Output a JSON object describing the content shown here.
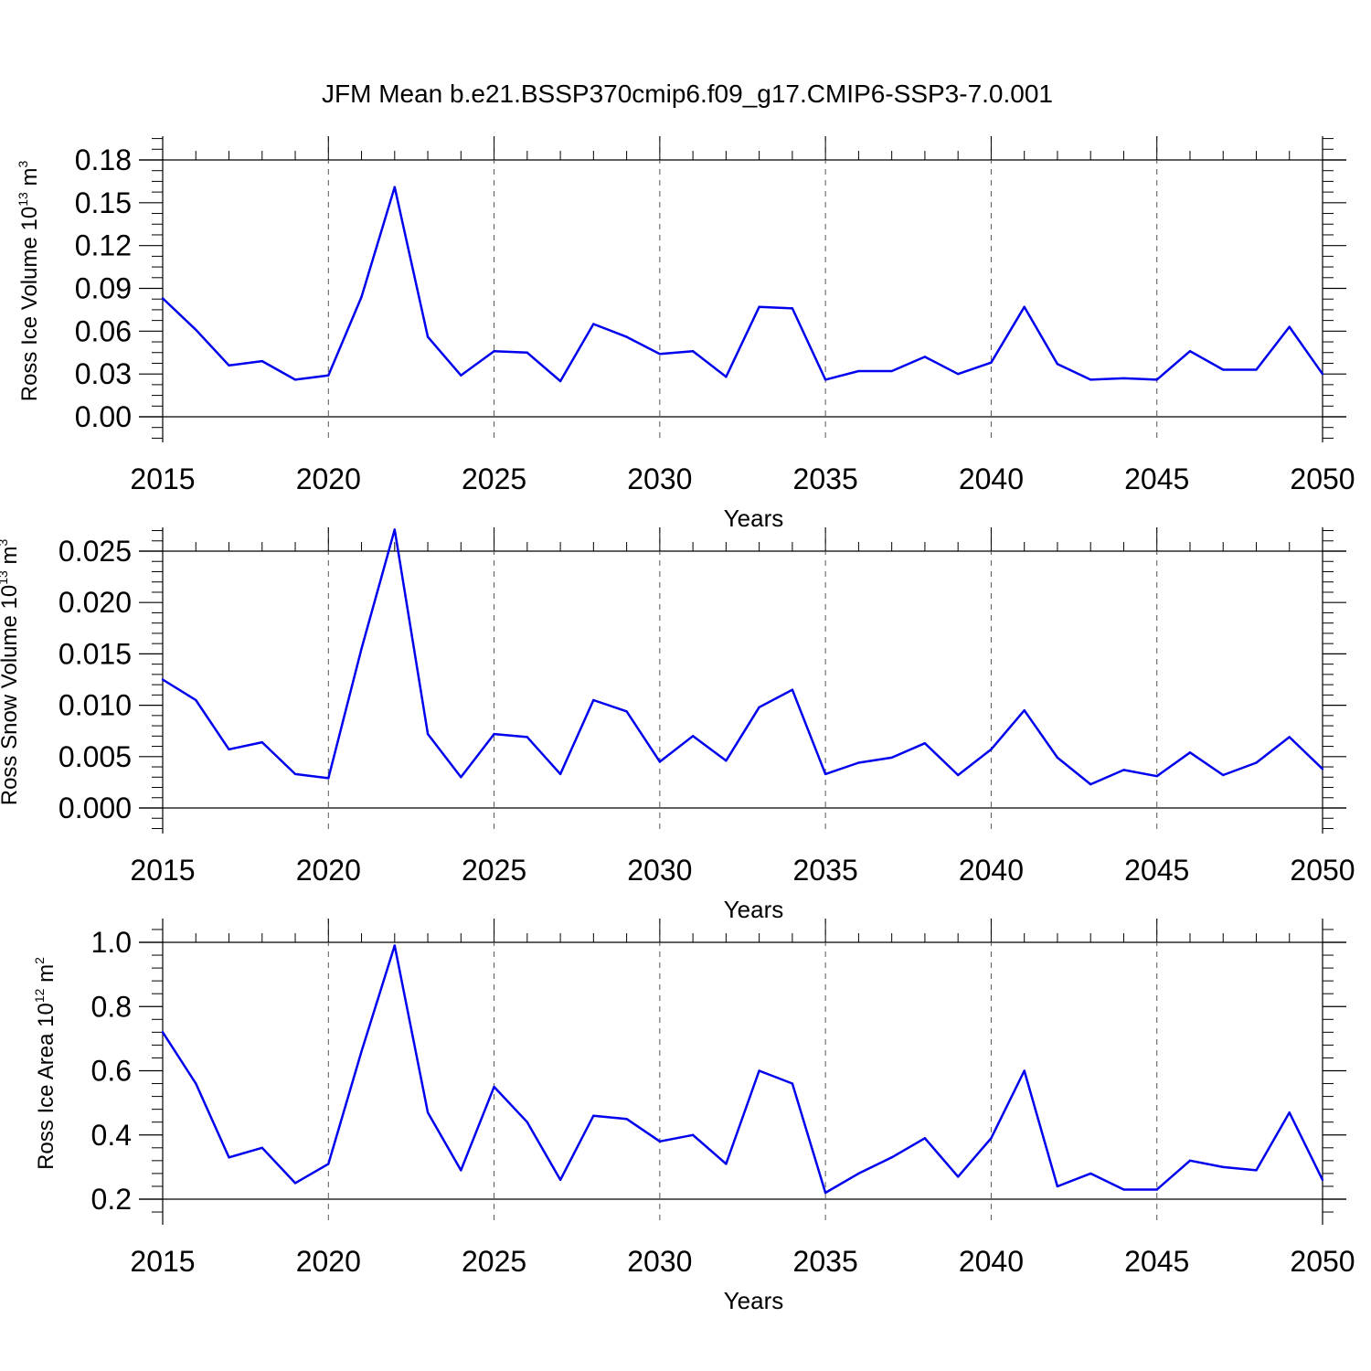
{
  "figure": {
    "title": "JFM Mean b.e21.BSSP370cmip6.f09_g17.CMIP6-SSP3-7.0.001"
  },
  "chart_data": [
    {
      "type": "line",
      "title": "",
      "xlabel": "Years",
      "ylabel": {
        "base": "Ross Ice Volume 10",
        "exponent": "13",
        "unit": " m",
        "unit_exponent": "3"
      },
      "xlim": [
        2015,
        2050
      ],
      "ylim": [
        0.0,
        0.18
      ],
      "xticks": [
        2015,
        2020,
        2025,
        2030,
        2035,
        2040,
        2045,
        2050
      ],
      "yticks": [
        0.0,
        0.03,
        0.06,
        0.09,
        0.12,
        0.15,
        0.18
      ],
      "ytick_labels": [
        "0.00",
        "0.03",
        "0.06",
        "0.09",
        "0.12",
        "0.15",
        "0.18"
      ],
      "grid": "vertical dashed at major x ticks",
      "color": "#0000ee",
      "x": [
        2015,
        2016,
        2017,
        2018,
        2019,
        2020,
        2021,
        2022,
        2023,
        2024,
        2025,
        2026,
        2027,
        2028,
        2029,
        2030,
        2031,
        2032,
        2033,
        2034,
        2035,
        2036,
        2037,
        2038,
        2039,
        2040,
        2041,
        2042,
        2043,
        2044,
        2045,
        2046,
        2047,
        2048,
        2049,
        2050
      ],
      "y": [
        0.083,
        0.061,
        0.036,
        0.039,
        0.026,
        0.029,
        0.084,
        0.161,
        0.056,
        0.029,
        0.046,
        0.045,
        0.025,
        0.065,
        0.056,
        0.044,
        0.046,
        0.028,
        0.077,
        0.076,
        0.026,
        0.032,
        0.032,
        0.042,
        0.03,
        0.038,
        0.077,
        0.037,
        0.026,
        0.027,
        0.026,
        0.046,
        0.033,
        0.033,
        0.063,
        0.03
      ]
    },
    {
      "type": "line",
      "title": "",
      "xlabel": "Years",
      "ylabel": {
        "base": "Ross Snow Volume 10",
        "exponent": "13",
        "unit": " m",
        "unit_exponent": "3"
      },
      "xlim": [
        2015,
        2050
      ],
      "ylim": [
        0.0,
        0.028
      ],
      "xticks": [
        2015,
        2020,
        2025,
        2030,
        2035,
        2040,
        2045,
        2050
      ],
      "yticks": [
        0.0,
        0.005,
        0.01,
        0.015,
        0.02,
        0.025
      ],
      "ytick_labels": [
        "0.000",
        "0.005",
        "0.010",
        "0.015",
        "0.020",
        "0.025"
      ],
      "grid": "vertical dashed at major x ticks",
      "color": "#0000ee",
      "x": [
        2015,
        2016,
        2017,
        2018,
        2019,
        2020,
        2021,
        2022,
        2023,
        2024,
        2025,
        2026,
        2027,
        2028,
        2029,
        2030,
        2031,
        2032,
        2033,
        2034,
        2035,
        2036,
        2037,
        2038,
        2039,
        2040,
        2041,
        2042,
        2043,
        2044,
        2045,
        2046,
        2047,
        2048,
        2049,
        2050
      ],
      "y": [
        0.0125,
        0.0105,
        0.0057,
        0.0064,
        0.0033,
        0.0029,
        0.0155,
        0.0271,
        0.0072,
        0.003,
        0.0072,
        0.0069,
        0.0033,
        0.0105,
        0.0094,
        0.0045,
        0.007,
        0.0046,
        0.0098,
        0.0115,
        0.0033,
        0.0044,
        0.0049,
        0.0063,
        0.0032,
        0.0057,
        0.0095,
        0.0049,
        0.0023,
        0.0037,
        0.0031,
        0.0054,
        0.0032,
        0.0044,
        0.0069,
        0.0038
      ]
    },
    {
      "type": "line",
      "title": "",
      "xlabel": "Years",
      "ylabel": {
        "base": "Ross Ice Area 10",
        "exponent": "12",
        "unit": " m",
        "unit_exponent": "2"
      },
      "xlim": [
        2015,
        2050
      ],
      "ylim": [
        0.2,
        1.0
      ],
      "xticks": [
        2015,
        2020,
        2025,
        2030,
        2035,
        2040,
        2045,
        2050
      ],
      "yticks": [
        0.2,
        0.4,
        0.6,
        0.8,
        1.0
      ],
      "ytick_labels": [
        "0.2",
        "0.4",
        "0.6",
        "0.8",
        "1.0"
      ],
      "grid": "vertical dashed at major x ticks",
      "color": "#0000ee",
      "x": [
        2015,
        2016,
        2017,
        2018,
        2019,
        2020,
        2021,
        2022,
        2023,
        2024,
        2025,
        2026,
        2027,
        2028,
        2029,
        2030,
        2031,
        2032,
        2033,
        2034,
        2035,
        2036,
        2037,
        2038,
        2039,
        2040,
        2041,
        2042,
        2043,
        2044,
        2045,
        2046,
        2047,
        2048,
        2049,
        2050
      ],
      "y": [
        0.72,
        0.56,
        0.33,
        0.36,
        0.25,
        0.31,
        0.66,
        0.99,
        0.47,
        0.29,
        0.55,
        0.44,
        0.26,
        0.46,
        0.45,
        0.38,
        0.4,
        0.31,
        0.6,
        0.56,
        0.22,
        0.28,
        0.33,
        0.39,
        0.27,
        0.39,
        0.6,
        0.24,
        0.28,
        0.23,
        0.23,
        0.32,
        0.3,
        0.29,
        0.47,
        0.26
      ]
    }
  ]
}
